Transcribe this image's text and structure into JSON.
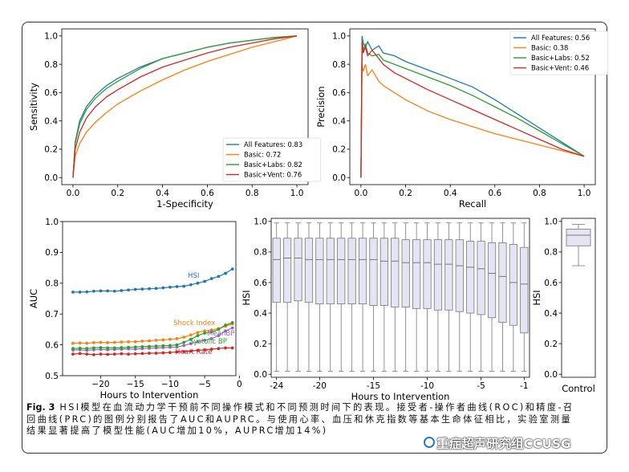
{
  "chart_data": [
    {
      "type": "line",
      "panel": "roc",
      "xlabel": "1-Specificity",
      "ylabel": "Sensitivity",
      "xlim": [
        -0.05,
        1.05
      ],
      "ylim": [
        -0.05,
        1.05
      ],
      "xticks": [
        "0.0",
        "0.2",
        "0.4",
        "0.6",
        "0.8",
        "1.0"
      ],
      "yticks": [
        "0.0",
        "0.2",
        "0.4",
        "0.6",
        "0.8",
        "1.0"
      ],
      "legend_position": "lower-right",
      "series": [
        {
          "name": "All Features: 0.83",
          "color": "#1f77b4",
          "x": [
            0,
            0.01,
            0.03,
            0.06,
            0.1,
            0.15,
            0.2,
            0.3,
            0.4,
            0.5,
            0.6,
            0.7,
            0.8,
            0.9,
            1.0
          ],
          "y": [
            0,
            0.25,
            0.4,
            0.5,
            0.58,
            0.65,
            0.7,
            0.78,
            0.84,
            0.88,
            0.92,
            0.95,
            0.97,
            0.99,
            1.0
          ]
        },
        {
          "name": "Basic: 0.72",
          "color": "#ff7f0e",
          "x": [
            0,
            0.01,
            0.03,
            0.06,
            0.1,
            0.15,
            0.2,
            0.3,
            0.4,
            0.5,
            0.6,
            0.7,
            0.8,
            0.9,
            1.0
          ],
          "y": [
            0,
            0.15,
            0.24,
            0.32,
            0.39,
            0.46,
            0.52,
            0.61,
            0.69,
            0.76,
            0.82,
            0.87,
            0.92,
            0.96,
            1.0
          ]
        },
        {
          "name": "Basic+Labs: 0.82",
          "color": "#2ca02c",
          "x": [
            0,
            0.01,
            0.03,
            0.06,
            0.1,
            0.15,
            0.2,
            0.3,
            0.4,
            0.5,
            0.6,
            0.7,
            0.8,
            0.9,
            1.0
          ],
          "y": [
            0,
            0.24,
            0.38,
            0.48,
            0.56,
            0.63,
            0.68,
            0.77,
            0.84,
            0.88,
            0.92,
            0.95,
            0.97,
            0.99,
            1.0
          ]
        },
        {
          "name": "Basic+Vent: 0.76",
          "color": "#d62728",
          "x": [
            0,
            0.01,
            0.03,
            0.06,
            0.1,
            0.15,
            0.2,
            0.3,
            0.4,
            0.5,
            0.6,
            0.7,
            0.8,
            0.9,
            1.0
          ],
          "y": [
            0,
            0.2,
            0.32,
            0.42,
            0.5,
            0.57,
            0.62,
            0.71,
            0.78,
            0.83,
            0.88,
            0.92,
            0.95,
            0.98,
            1.0
          ]
        }
      ]
    },
    {
      "type": "line",
      "panel": "prc",
      "xlabel": "Recall",
      "ylabel": "Precision",
      "xlim": [
        -0.05,
        1.05
      ],
      "ylim": [
        -0.05,
        1.05
      ],
      "xticks": [
        "0.0",
        "0.2",
        "0.4",
        "0.6",
        "0.8",
        "1.0"
      ],
      "yticks": [
        "0.0",
        "0.2",
        "0.4",
        "0.6",
        "0.8",
        "1.0"
      ],
      "legend_position": "upper-right",
      "series": [
        {
          "name": "All Features: 0.56",
          "color": "#1f77b4",
          "x": [
            0,
            0.005,
            0.01,
            0.02,
            0.03,
            0.05,
            0.08,
            0.1,
            0.15,
            0.2,
            0.3,
            0.4,
            0.5,
            0.6,
            0.7,
            0.8,
            0.9,
            1.0
          ],
          "y": [
            0,
            1.0,
            0.95,
            0.92,
            0.96,
            0.9,
            0.93,
            0.88,
            0.86,
            0.82,
            0.76,
            0.7,
            0.64,
            0.55,
            0.45,
            0.35,
            0.25,
            0.15
          ]
        },
        {
          "name": "Basic: 0.38",
          "color": "#ff7f0e",
          "x": [
            0,
            0.005,
            0.01,
            0.02,
            0.03,
            0.05,
            0.08,
            0.1,
            0.15,
            0.2,
            0.3,
            0.4,
            0.5,
            0.6,
            0.7,
            0.8,
            0.9,
            1.0
          ],
          "y": [
            0,
            0.8,
            0.75,
            0.8,
            0.72,
            0.76,
            0.68,
            0.65,
            0.6,
            0.55,
            0.47,
            0.41,
            0.36,
            0.31,
            0.27,
            0.23,
            0.19,
            0.15
          ]
        },
        {
          "name": "Basic+Labs: 0.52",
          "color": "#2ca02c",
          "x": [
            0,
            0.005,
            0.01,
            0.02,
            0.03,
            0.05,
            0.08,
            0.1,
            0.15,
            0.2,
            0.3,
            0.4,
            0.5,
            0.6,
            0.7,
            0.8,
            0.9,
            1.0
          ],
          "y": [
            0,
            0.98,
            0.9,
            0.94,
            0.88,
            0.86,
            0.87,
            0.83,
            0.8,
            0.77,
            0.71,
            0.65,
            0.58,
            0.5,
            0.42,
            0.33,
            0.24,
            0.15
          ]
        },
        {
          "name": "Basic+Vent: 0.46",
          "color": "#d62728",
          "x": [
            0,
            0.005,
            0.01,
            0.02,
            0.03,
            0.05,
            0.08,
            0.1,
            0.15,
            0.2,
            0.3,
            0.4,
            0.5,
            0.6,
            0.7,
            0.8,
            0.9,
            1.0
          ],
          "y": [
            0,
            0.96,
            0.88,
            0.92,
            0.86,
            0.9,
            0.84,
            0.8,
            0.74,
            0.7,
            0.62,
            0.55,
            0.48,
            0.41,
            0.34,
            0.27,
            0.2,
            0.15
          ]
        }
      ]
    },
    {
      "type": "line",
      "panel": "auc",
      "xlabel": "Hours to Intervention",
      "ylabel": "AUC",
      "xlim": [
        -25.5,
        -0.5
      ],
      "ylim": [
        0.5,
        1.0
      ],
      "xticks": [
        "−20",
        "−15",
        "−10",
        "−5",
        "0"
      ],
      "yticks": [
        "0.5",
        "0.6",
        "0.7",
        "0.8",
        "0.9",
        "1.0"
      ],
      "x": [
        -24,
        -23,
        -22,
        -21,
        -20,
        -19,
        -18,
        -17,
        -16,
        -15,
        -14,
        -13,
        -12,
        -11,
        -10,
        -9,
        -8,
        -7,
        -6,
        -5,
        -4,
        -3,
        -2,
        -1
      ],
      "series": [
        {
          "name": "HSI",
          "color": "#1f77b4",
          "values": [
            0.771,
            0.771,
            0.772,
            0.774,
            0.775,
            0.775,
            0.774,
            0.776,
            0.778,
            0.78,
            0.781,
            0.782,
            0.783,
            0.785,
            0.787,
            0.789,
            0.79,
            0.795,
            0.8,
            0.806,
            0.815,
            0.822,
            0.832,
            0.846
          ]
        },
        {
          "name": "Shock Index",
          "color": "#ff7f0e",
          "values": [
            0.605,
            0.606,
            0.605,
            0.607,
            0.608,
            0.607,
            0.608,
            0.609,
            0.61,
            0.61,
            0.612,
            0.613,
            0.615,
            0.616,
            0.618,
            0.62,
            0.625,
            0.632,
            0.64,
            0.645,
            0.648,
            0.653,
            0.66,
            0.668
          ]
        },
        {
          "name": "MeanBP",
          "color": "#9467bd",
          "values": [
            0.583,
            0.584,
            0.582,
            0.584,
            0.585,
            0.584,
            0.585,
            0.586,
            0.587,
            0.586,
            0.588,
            0.589,
            0.59,
            0.591,
            0.592,
            0.593,
            0.598,
            0.604,
            0.61,
            0.615,
            0.62,
            0.63,
            0.645,
            0.655
          ]
        },
        {
          "name": "Systolic BP",
          "color": "#2ca02c",
          "values": [
            0.588,
            0.589,
            0.588,
            0.59,
            0.591,
            0.59,
            0.59,
            0.591,
            0.592,
            0.593,
            0.594,
            0.595,
            0.596,
            0.597,
            0.598,
            0.6,
            0.608,
            0.618,
            0.63,
            0.638,
            0.642,
            0.65,
            0.664,
            0.672
          ]
        },
        {
          "name": "Heart Rate",
          "color": "#d62728",
          "values": [
            0.57,
            0.572,
            0.57,
            0.568,
            0.57,
            0.569,
            0.57,
            0.571,
            0.57,
            0.571,
            0.572,
            0.573,
            0.573,
            0.574,
            0.575,
            0.577,
            0.578,
            0.58,
            0.582,
            0.584,
            0.586,
            0.588,
            0.59,
            0.59
          ]
        }
      ]
    },
    {
      "type": "box",
      "panel": "hsi_by_hour",
      "xlabel": "Hours to Intervention",
      "ylabel": "HSI",
      "ylim": [
        -0.02,
        1.02
      ],
      "xticks": [
        "-24",
        "-20",
        "-15",
        "-10",
        "-5",
        "-1"
      ],
      "yticks": [
        "0.0",
        "0.2",
        "0.4",
        "0.6",
        "0.8",
        "1.0"
      ],
      "x": [
        -24,
        -23,
        -22,
        -21,
        -20,
        -19,
        -18,
        -17,
        -16,
        -15,
        -14,
        -13,
        -12,
        -11,
        -10,
        -9,
        -8,
        -7,
        -6,
        -5,
        -4,
        -3,
        -2,
        -1
      ],
      "boxes": [
        {
          "q1": 0.47,
          "median": 0.75,
          "q3": 0.89,
          "whislo": 0.02,
          "whishi": 0.99
        },
        {
          "q1": 0.47,
          "median": 0.76,
          "q3": 0.89,
          "whislo": 0.02,
          "whishi": 0.99
        },
        {
          "q1": 0.48,
          "median": 0.76,
          "q3": 0.89,
          "whislo": 0.02,
          "whishi": 0.99
        },
        {
          "q1": 0.47,
          "median": 0.75,
          "q3": 0.89,
          "whislo": 0.02,
          "whishi": 0.99
        },
        {
          "q1": 0.46,
          "median": 0.75,
          "q3": 0.89,
          "whislo": 0.02,
          "whishi": 0.99
        },
        {
          "q1": 0.46,
          "median": 0.75,
          "q3": 0.89,
          "whislo": 0.02,
          "whishi": 0.99
        },
        {
          "q1": 0.46,
          "median": 0.75,
          "q3": 0.89,
          "whislo": 0.02,
          "whishi": 0.99
        },
        {
          "q1": 0.46,
          "median": 0.75,
          "q3": 0.89,
          "whislo": 0.02,
          "whishi": 0.99
        },
        {
          "q1": 0.46,
          "median": 0.75,
          "q3": 0.89,
          "whislo": 0.02,
          "whishi": 0.99
        },
        {
          "q1": 0.45,
          "median": 0.75,
          "q3": 0.89,
          "whislo": 0.02,
          "whishi": 0.99
        },
        {
          "q1": 0.45,
          "median": 0.74,
          "q3": 0.89,
          "whislo": 0.02,
          "whishi": 0.99
        },
        {
          "q1": 0.44,
          "median": 0.74,
          "q3": 0.89,
          "whislo": 0.02,
          "whishi": 0.99
        },
        {
          "q1": 0.44,
          "median": 0.73,
          "q3": 0.88,
          "whislo": 0.02,
          "whishi": 0.99
        },
        {
          "q1": 0.43,
          "median": 0.73,
          "q3": 0.88,
          "whislo": 0.02,
          "whishi": 0.99
        },
        {
          "q1": 0.43,
          "median": 0.73,
          "q3": 0.88,
          "whislo": 0.02,
          "whishi": 0.99
        },
        {
          "q1": 0.42,
          "median": 0.72,
          "q3": 0.88,
          "whislo": 0.02,
          "whishi": 0.99
        },
        {
          "q1": 0.42,
          "median": 0.72,
          "q3": 0.88,
          "whislo": 0.02,
          "whishi": 0.99
        },
        {
          "q1": 0.41,
          "median": 0.71,
          "q3": 0.88,
          "whislo": 0.02,
          "whishi": 0.99
        },
        {
          "q1": 0.4,
          "median": 0.7,
          "q3": 0.87,
          "whislo": 0.02,
          "whishi": 0.99
        },
        {
          "q1": 0.39,
          "median": 0.69,
          "q3": 0.87,
          "whislo": 0.02,
          "whishi": 0.99
        },
        {
          "q1": 0.37,
          "median": 0.66,
          "q3": 0.86,
          "whislo": 0.02,
          "whishi": 0.99
        },
        {
          "q1": 0.34,
          "median": 0.64,
          "q3": 0.86,
          "whislo": 0.02,
          "whishi": 0.99
        },
        {
          "q1": 0.32,
          "median": 0.6,
          "q3": 0.85,
          "whislo": 0.02,
          "whishi": 0.99
        },
        {
          "q1": 0.27,
          "median": 0.59,
          "q3": 0.83,
          "whislo": 0.02,
          "whishi": 0.99
        }
      ],
      "box_color": "#e4e4f2"
    },
    {
      "type": "box",
      "panel": "control",
      "xlabel": "Control",
      "ylabel": "HSI",
      "ylim": [
        -0.02,
        1.02
      ],
      "yticks": [
        "0.0",
        "0.2",
        "0.4",
        "0.6",
        "0.8",
        "1.0"
      ],
      "boxes": [
        {
          "q1": 0.84,
          "median": 0.91,
          "q3": 0.95,
          "whislo": 0.71,
          "whishi": 0.98
        }
      ],
      "box_color": "#e4e4f2"
    }
  ],
  "panel_labels": {
    "hsi": "HSI",
    "shock": "Shock Index",
    "meanbp": "MeanBP",
    "sbp": "Systolic BP",
    "hr": "Heart Rate"
  },
  "caption": {
    "label": "Fig. 3",
    "text": " HSI模型在血流动力学干预前不同操作模式和不同预测时间下的表现。接受者-操作者曲线(ROC)和精度-召回曲线(PRC)的图例分别报告了AUC和AUPRC。与使用心率、血压和休克指数等基本生命体征相比，实验室测量结果显著提高了模型性能(AUC增加10%，AUPRC增加14%)"
  },
  "watermark": "重症超声研究组CCUSG"
}
